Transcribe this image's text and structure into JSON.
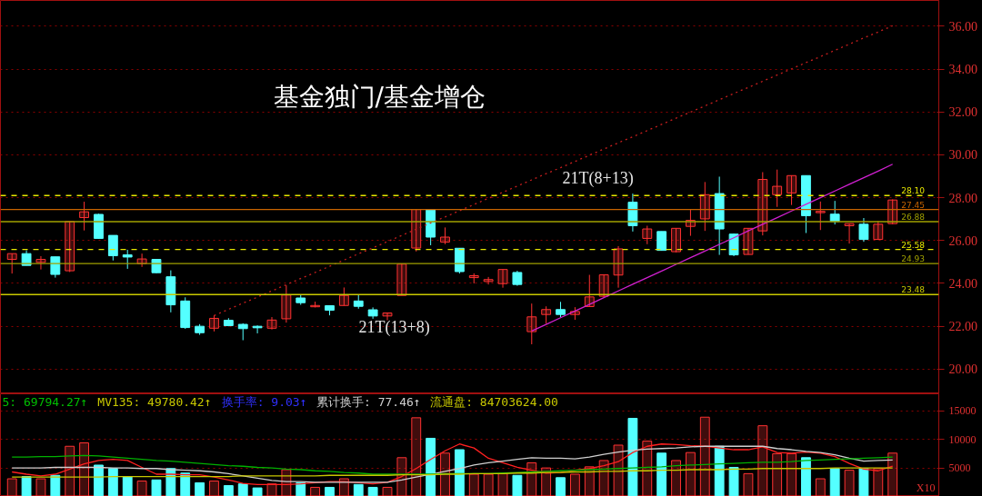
{
  "chart_data": [
    {
      "type": "candlestick",
      "title": "基金独门/基金增仓",
      "categories": [
        null,
        null,
        null,
        null,
        null,
        null,
        null,
        null,
        null,
        null,
        null,
        null,
        null,
        null,
        null,
        null,
        null,
        null,
        null,
        null,
        null,
        null,
        null,
        null,
        null,
        null,
        null,
        null,
        null,
        null,
        null,
        null,
        null,
        null,
        null,
        null,
        null,
        null,
        null,
        null,
        null,
        null,
        null,
        null,
        null,
        null,
        null,
        null,
        null,
        null,
        null,
        null,
        null,
        null,
        null,
        null,
        null,
        null,
        null,
        null,
        null,
        null
      ],
      "ohlc": [
        [
          25.12,
          25.39,
          24.46,
          25.39
        ],
        [
          25.39,
          25.54,
          24.84,
          24.84
        ],
        [
          24.98,
          25.27,
          24.65,
          25.12
        ],
        [
          25.24,
          25.24,
          24.27,
          24.42
        ],
        [
          24.59,
          26.89,
          24.53,
          26.89
        ],
        [
          27.07,
          27.81,
          26.47,
          27.34
        ],
        [
          27.22,
          27.25,
          26.08,
          26.1
        ],
        [
          26.24,
          26.24,
          25.07,
          25.29
        ],
        [
          25.33,
          25.57,
          24.68,
          25.23
        ],
        [
          24.92,
          25.39,
          24.77,
          25.14
        ],
        [
          25.12,
          25.12,
          24.48,
          24.5
        ],
        [
          24.31,
          24.61,
          22.65,
          23.0
        ],
        [
          23.18,
          23.35,
          21.88,
          21.94
        ],
        [
          22.0,
          22.1,
          21.6,
          21.7
        ],
        [
          21.91,
          22.51,
          21.76,
          22.37
        ],
        [
          22.28,
          22.38,
          22.0,
          22.03
        ],
        [
          22.09,
          22.14,
          21.35,
          21.89
        ],
        [
          22.0,
          22.04,
          21.67,
          21.93
        ],
        [
          21.91,
          22.43,
          21.85,
          22.29
        ],
        [
          22.35,
          23.91,
          22.17,
          23.46
        ],
        [
          23.32,
          23.47,
          23.0,
          23.1
        ],
        [
          22.91,
          23.15,
          22.88,
          22.97
        ],
        [
          22.96,
          22.96,
          22.51,
          22.75
        ],
        [
          22.97,
          23.81,
          22.97,
          23.44
        ],
        [
          23.18,
          23.47,
          22.82,
          22.93
        ],
        [
          22.77,
          22.88,
          22.35,
          22.48
        ],
        [
          22.48,
          22.62,
          22.28,
          22.62
        ],
        [
          23.44,
          24.93,
          23.44,
          24.9
        ],
        [
          25.65,
          27.45,
          25.49,
          27.45
        ],
        [
          27.45,
          27.45,
          25.78,
          26.16
        ],
        [
          25.93,
          26.61,
          25.83,
          26.16
        ],
        [
          25.64,
          25.64,
          24.46,
          24.55
        ],
        [
          24.27,
          24.47,
          24.0,
          24.36
        ],
        [
          24.09,
          24.3,
          23.95,
          24.18
        ],
        [
          23.99,
          24.65,
          23.8,
          24.65
        ],
        [
          24.51,
          24.59,
          23.89,
          23.95
        ],
        [
          21.75,
          23.06,
          21.16,
          22.44
        ],
        [
          22.55,
          22.93,
          22.12,
          22.78
        ],
        [
          22.78,
          23.14,
          22.42,
          22.55
        ],
        [
          22.55,
          22.89,
          22.3,
          22.69
        ],
        [
          22.92,
          24.4,
          22.92,
          23.37
        ],
        [
          23.4,
          24.4,
          23.36,
          24.4
        ],
        [
          24.39,
          25.74,
          23.8,
          25.61
        ],
        [
          27.79,
          28.19,
          26.42,
          26.69
        ],
        [
          26.1,
          26.69,
          25.83,
          26.54
        ],
        [
          26.42,
          26.42,
          25.54,
          25.54
        ],
        [
          25.48,
          26.57,
          25.45,
          26.57
        ],
        [
          26.66,
          27.45,
          26.22,
          26.94
        ],
        [
          27.01,
          28.73,
          26.45,
          28.14
        ],
        [
          28.19,
          28.98,
          25.33,
          26.54
        ],
        [
          26.3,
          26.33,
          25.27,
          25.33
        ],
        [
          25.35,
          26.57,
          25.35,
          26.57
        ],
        [
          26.45,
          29.19,
          26.24,
          28.85
        ],
        [
          28.14,
          29.31,
          27.57,
          28.53
        ],
        [
          28.22,
          29.03,
          27.66,
          29.03
        ],
        [
          29.03,
          29.03,
          26.35,
          27.16
        ],
        [
          27.3,
          27.82,
          26.49,
          27.36
        ],
        [
          27.23,
          27.85,
          26.75,
          26.89
        ],
        [
          26.69,
          26.79,
          25.86,
          26.79
        ],
        [
          26.76,
          27.05,
          25.94,
          26.05
        ],
        [
          26.05,
          26.91,
          26.05,
          26.76
        ],
        [
          26.79,
          27.92,
          26.76,
          27.89
        ]
      ],
      "colors": [
        "#ff3232",
        "#54ffff",
        "#ff3232",
        "#54ffff",
        "#ff3232",
        "#ff3232",
        "#54ffff",
        "#54ffff",
        "#54ffff",
        "#ff3232",
        "#54ffff",
        "#54ffff",
        "#54ffff",
        "#54ffff",
        "#ff3232",
        "#54ffff",
        "#54ffff",
        "#54ffff",
        "#ff3232",
        "#ff3232",
        "#54ffff",
        "#ff3232",
        "#54ffff",
        "#ff3232",
        "#54ffff",
        "#54ffff",
        "#ff3232",
        "#ff3232",
        "#ff3232",
        "#54ffff",
        "#ff3232",
        "#54ffff",
        "#ff3232",
        "#ff3232",
        "#ff3232",
        "#54ffff",
        "#ff3232",
        "#ff3232",
        "#54ffff",
        "#ff3232",
        "#ff3232",
        "#ff3232",
        "#ff3232",
        "#54ffff",
        "#ff3232",
        "#54ffff",
        "#ff3232",
        "#ff3232",
        "#ff3232",
        "#54ffff",
        "#54ffff",
        "#ff3232",
        "#ff3232",
        "#ff3232",
        "#ff3232",
        "#54ffff",
        "#ff3232",
        "#54ffff",
        "#ff3232",
        "#54ffff",
        "#ff3232",
        "#ff3232"
      ],
      "series": [
        {
          "type": "line",
          "color": "#c81e1e",
          "line_style": "dotted",
          "values": [
            null,
            null,
            null,
            null,
            null,
            null,
            null,
            null,
            null,
            null,
            null,
            null,
            null,
            null,
            22.5,
            22.79,
            23.08,
            23.36,
            23.65,
            23.94,
            24.23,
            24.51,
            24.8,
            25.09,
            25.38,
            25.66,
            25.95,
            26.24,
            26.53,
            26.82,
            27.1,
            27.39,
            27.68,
            27.97,
            28.25,
            28.54,
            28.83,
            29.12,
            29.4,
            29.69,
            29.98,
            30.27,
            30.56,
            30.84,
            31.13,
            31.42,
            31.71,
            31.99,
            32.28,
            32.57,
            32.86,
            33.14,
            33.43,
            33.72,
            34.01,
            34.3,
            34.58,
            34.87,
            35.16,
            35.45,
            35.73,
            36.02
          ]
        },
        {
          "type": "line",
          "color": "#d020d0",
          "line_style": "solid",
          "values": [
            null,
            null,
            null,
            null,
            null,
            null,
            null,
            null,
            null,
            null,
            null,
            null,
            null,
            null,
            null,
            null,
            null,
            null,
            null,
            null,
            null,
            null,
            null,
            null,
            null,
            null,
            null,
            null,
            null,
            null,
            null,
            null,
            null,
            null,
            null,
            null,
            21.78,
            22.09,
            22.4,
            22.71,
            23.02,
            23.34,
            23.65,
            23.96,
            24.27,
            24.58,
            24.89,
            25.2,
            25.51,
            25.82,
            26.13,
            26.45,
            26.76,
            27.07,
            27.38,
            27.69,
            28.0,
            28.31,
            28.62,
            28.93,
            29.24,
            29.56
          ]
        }
      ],
      "ref_lines": [
        {
          "axis": "y",
          "value": 26.88,
          "label": "26.88",
          "color": "#a0a000",
          "line_style": "solid"
        },
        {
          "axis": "y",
          "value": 27.45,
          "label": "27.45",
          "color": "#c86400",
          "line_style": "solid"
        },
        {
          "axis": "y",
          "value": 24.93,
          "label": "24.93",
          "color": "#a0a000",
          "line_style": "solid"
        },
        {
          "axis": "y",
          "value": 23.48,
          "label": "23.48",
          "color": "#c8c800",
          "line_style": "solid"
        },
        {
          "axis": "y",
          "value": 25.58,
          "label": "25.58",
          "color": "#e6e600",
          "line_style": "dashed"
        },
        {
          "axis": "y",
          "value": 28.1,
          "label": "28.10",
          "color": "#e6e600",
          "line_style": "dashed"
        }
      ],
      "annotations": [
        "21T(13+8)",
        "21T(8+13)"
      ],
      "ylim": [
        18.85,
        37.2
      ],
      "yticks": [
        {
          "value": 20,
          "label": "20.00"
        },
        {
          "value": 22,
          "label": "22.00"
        },
        {
          "value": 24,
          "label": "24.00"
        },
        {
          "value": 26,
          "label": "26.00"
        },
        {
          "value": 28,
          "label": "28.00"
        },
        {
          "value": 30,
          "label": "30.00"
        },
        {
          "value": 32,
          "label": "32.00"
        },
        {
          "value": 34,
          "label": "34.00"
        },
        {
          "value": 36,
          "label": "36.00"
        }
      ],
      "tick_labels": "y",
      "grid": "y"
    },
    {
      "type": "bar",
      "categories": [
        null,
        null,
        null,
        null,
        null,
        null,
        null,
        null,
        null,
        null,
        null,
        null,
        null,
        null,
        null,
        null,
        null,
        null,
        null,
        null,
        null,
        null,
        null,
        null,
        null,
        null,
        null,
        null,
        null,
        null,
        null,
        null,
        null,
        null,
        null,
        null,
        null,
        null,
        null,
        null,
        null,
        null,
        null,
        null,
        null,
        null,
        null,
        null,
        null,
        null,
        null,
        null,
        null,
        null,
        null,
        null,
        null,
        null,
        null,
        null,
        null,
        null
      ],
      "values": [
        3100,
        3500,
        3100,
        3700,
        8800,
        9400,
        5500,
        4900,
        3500,
        2700,
        2900,
        4900,
        4100,
        2400,
        2700,
        1900,
        2200,
        1500,
        2200,
        4700,
        2400,
        1600,
        1600,
        3100,
        2100,
        1600,
        1600,
        6800,
        13800,
        10200,
        7600,
        8200,
        3900,
        3900,
        4000,
        3700,
        5900,
        5000,
        3300,
        3900,
        5200,
        6300,
        9000,
        13700,
        9700,
        7600,
        6300,
        7700,
        13900,
        8800,
        5100,
        4000,
        12400,
        7500,
        7500,
        6800,
        3100,
        4900,
        4600,
        4900,
        4900,
        7600
      ],
      "colors": [
        "#ff3232",
        "#54ffff",
        "#ff3232",
        "#54ffff",
        "#ff3232",
        "#ff3232",
        "#54ffff",
        "#54ffff",
        "#54ffff",
        "#ff3232",
        "#54ffff",
        "#54ffff",
        "#54ffff",
        "#54ffff",
        "#ff3232",
        "#54ffff",
        "#54ffff",
        "#54ffff",
        "#ff3232",
        "#ff3232",
        "#54ffff",
        "#ff3232",
        "#54ffff",
        "#ff3232",
        "#54ffff",
        "#54ffff",
        "#ff3232",
        "#ff3232",
        "#ff3232",
        "#54ffff",
        "#ff3232",
        "#54ffff",
        "#ff3232",
        "#ff3232",
        "#ff3232",
        "#54ffff",
        "#ff3232",
        "#ff3232",
        "#54ffff",
        "#ff3232",
        "#ff3232",
        "#ff3232",
        "#ff3232",
        "#54ffff",
        "#ff3232",
        "#54ffff",
        "#ff3232",
        "#ff3232",
        "#ff3232",
        "#54ffff",
        "#54ffff",
        "#ff3232",
        "#ff3232",
        "#ff3232",
        "#ff3232",
        "#54ffff",
        "#ff3232",
        "#54ffff",
        "#ff3232",
        "#54ffff",
        "#ff3232",
        "#ff3232"
      ],
      "series": [
        {
          "type": "line",
          "color": "#ff2020",
          "values": [
            4300,
            3900,
            3600,
            3900,
            4800,
            5700,
            6300,
            6500,
            6300,
            5100,
            3900,
            3900,
            3800,
            3800,
            3400,
            2900,
            2300,
            2100,
            2100,
            2100,
            2200,
            2400,
            2600,
            2600,
            2400,
            2200,
            2500,
            3500,
            4900,
            6500,
            8000,
            9200,
            8500,
            6700,
            5900,
            5100,
            4600,
            4100,
            4200,
            4600,
            4900,
            5400,
            6100,
            7700,
            8800,
            9200,
            9100,
            8900,
            8800,
            8500,
            8200,
            8200,
            8700,
            7700,
            7600,
            7800,
            7600,
            7000,
            5800,
            4800,
            4500,
            5300
          ]
        },
        {
          "type": "line",
          "color": "#d0d0d0",
          "values": [
            5000,
            5000,
            5000,
            5100,
            5100,
            5100,
            5100,
            5000,
            5000,
            4900,
            4900,
            4700,
            4600,
            4500,
            4300,
            4000,
            3600,
            3200,
            2800,
            2600,
            2600,
            2500,
            2500,
            2500,
            2500,
            2500,
            2500,
            2900,
            3400,
            3900,
            4400,
            4900,
            5500,
            5900,
            6200,
            6500,
            6800,
            6700,
            6700,
            6600,
            6900,
            7400,
            7800,
            8100,
            8300,
            8400,
            8500,
            8700,
            8800,
            8800,
            8800,
            8800,
            8800,
            8400,
            8200,
            7900,
            7700,
            7300,
            6700,
            6200,
            6300,
            6400
          ]
        },
        {
          "type": "line",
          "color": "#00b000",
          "values": [
            6900,
            6900,
            7000,
            7000,
            7100,
            7200,
            7100,
            6900,
            6700,
            6500,
            6300,
            6200,
            6000,
            5800,
            5600,
            5400,
            5300,
            5100,
            5000,
            4800,
            4700,
            4500,
            4400,
            4200,
            4100,
            3900,
            3900,
            3900,
            3900,
            3900,
            4000,
            4000,
            4000,
            4000,
            4100,
            4200,
            4300,
            4400,
            4500,
            4600,
            4700,
            4800,
            4900,
            5000,
            5100,
            5200,
            5400,
            5500,
            5600,
            5700,
            5800,
            5900,
            6000,
            6000,
            6100,
            6300,
            6400,
            6500,
            6600,
            6700,
            6800,
            6900
          ]
        },
        {
          "type": "line",
          "color": "#c8c800",
          "values": [
            3400,
            3400,
            3400,
            3400,
            3400,
            3400,
            3400,
            3500,
            3500,
            3500,
            3500,
            3500,
            3500,
            3500,
            3500,
            3500,
            3600,
            3600,
            3600,
            3600,
            3600,
            3600,
            3700,
            3700,
            3700,
            3700,
            3700,
            3800,
            3800,
            3800,
            3900,
            3900,
            4000,
            4000,
            4000,
            4100,
            4100,
            4200,
            4200,
            4300,
            4300,
            4400,
            4400,
            4500,
            4500,
            4600,
            4600,
            4700,
            4700,
            4700,
            4800,
            4800,
            4900,
            4900,
            4900,
            4900,
            4900,
            5000,
            5000,
            5000,
            5000,
            5000
          ]
        }
      ],
      "annotations": [
        "5: 69794.27↑",
        "MV135: 49780.42↑",
        "换手率: 9.03↑",
        "累计换手: 77.46↑",
        "流通盘: 84703624.00",
        "X10"
      ],
      "ylim": [
        0,
        18000
      ],
      "yticks": [
        5000,
        10000,
        15000
      ],
      "tick_labels": "y",
      "grid": "y"
    }
  ]
}
